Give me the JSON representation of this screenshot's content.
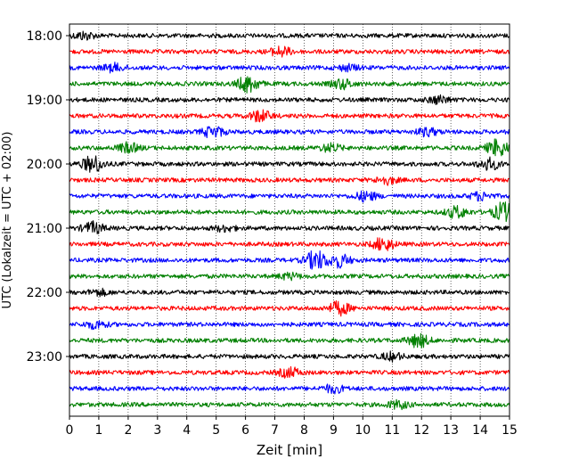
{
  "chart_data": {
    "type": "line",
    "title": "",
    "xlabel": "Zeit  [min]",
    "ylabel": "UTC (Lokalzeit = UTC + 02:00)",
    "xlim": [
      0,
      15
    ],
    "x_ticks": [
      "0",
      "1",
      "2",
      "3",
      "4",
      "5",
      "6",
      "7",
      "8",
      "9",
      "10",
      "11",
      "12",
      "13",
      "14",
      "15"
    ],
    "y_tick_labels": [
      "18:00",
      "19:00",
      "20:00",
      "21:00",
      "22:00",
      "23:00"
    ],
    "grid": "vertical dotted lines at each minute",
    "trace_interval_minutes": 15,
    "trace_start": "18:00",
    "trace_colors": [
      "#000000",
      "#ff0000",
      "#0000ff",
      "#008000"
    ],
    "traces": [
      {
        "start": "18:00",
        "color": "black",
        "events": [
          {
            "t": 0.5,
            "a": 4
          }
        ]
      },
      {
        "start": "18:15",
        "color": "red",
        "events": [
          {
            "t": 7.2,
            "a": 5
          }
        ]
      },
      {
        "start": "18:30",
        "color": "blue",
        "events": [
          {
            "t": 1.5,
            "a": 4
          },
          {
            "t": 9.5,
            "a": 3
          }
        ]
      },
      {
        "start": "18:45",
        "color": "green",
        "events": [
          {
            "t": 6.1,
            "a": 9
          },
          {
            "t": 9.3,
            "a": 5
          }
        ]
      },
      {
        "start": "19:00",
        "color": "black",
        "events": [
          {
            "t": 12.6,
            "a": 4
          }
        ]
      },
      {
        "start": "19:15",
        "color": "red",
        "events": [
          {
            "t": 6.5,
            "a": 6
          }
        ]
      },
      {
        "start": "19:30",
        "color": "blue",
        "events": [
          {
            "t": 4.9,
            "a": 6
          },
          {
            "t": 12.2,
            "a": 4
          }
        ]
      },
      {
        "start": "19:45",
        "color": "green",
        "events": [
          {
            "t": 2.0,
            "a": 5
          },
          {
            "t": 8.9,
            "a": 4
          },
          {
            "t": 14.6,
            "a": 9
          }
        ]
      },
      {
        "start": "20:00",
        "color": "black",
        "events": [
          {
            "t": 0.8,
            "a": 9
          },
          {
            "t": 14.3,
            "a": 6
          }
        ]
      },
      {
        "start": "20:15",
        "color": "red",
        "events": [
          {
            "t": 10.8,
            "a": 4
          }
        ]
      },
      {
        "start": "20:30",
        "color": "blue",
        "events": [
          {
            "t": 10.1,
            "a": 5
          },
          {
            "t": 14.0,
            "a": 4
          }
        ]
      },
      {
        "start": "20:45",
        "color": "green",
        "events": [
          {
            "t": 13.2,
            "a": 6
          },
          {
            "t": 14.8,
            "a": 10
          }
        ]
      },
      {
        "start": "21:00",
        "color": "black",
        "events": [
          {
            "t": 0.8,
            "a": 6
          },
          {
            "t": 5.3,
            "a": 3
          }
        ]
      },
      {
        "start": "21:15",
        "color": "red",
        "events": [
          {
            "t": 10.7,
            "a": 7
          }
        ]
      },
      {
        "start": "21:30",
        "color": "blue",
        "events": [
          {
            "t": 8.4,
            "a": 10
          },
          {
            "t": 9.2,
            "a": 7
          }
        ]
      },
      {
        "start": "21:45",
        "color": "green",
        "events": [
          {
            "t": 7.5,
            "a": 3
          }
        ]
      },
      {
        "start": "22:00",
        "color": "black",
        "events": [
          {
            "t": 1.0,
            "a": 3
          }
        ]
      },
      {
        "start": "22:15",
        "color": "red",
        "events": [
          {
            "t": 9.2,
            "a": 7
          }
        ]
      },
      {
        "start": "22:30",
        "color": "blue",
        "events": [
          {
            "t": 0.9,
            "a": 4
          }
        ]
      },
      {
        "start": "22:45",
        "color": "green",
        "events": [
          {
            "t": 11.9,
            "a": 7
          }
        ]
      },
      {
        "start": "23:00",
        "color": "black",
        "events": [
          {
            "t": 11.0,
            "a": 4
          }
        ]
      },
      {
        "start": "23:15",
        "color": "red",
        "events": [
          {
            "t": 7.5,
            "a": 5
          }
        ]
      },
      {
        "start": "23:30",
        "color": "blue",
        "events": [
          {
            "t": 9.0,
            "a": 4
          }
        ]
      },
      {
        "start": "23:45",
        "color": "green",
        "events": [
          {
            "t": 11.2,
            "a": 4
          }
        ]
      }
    ]
  }
}
